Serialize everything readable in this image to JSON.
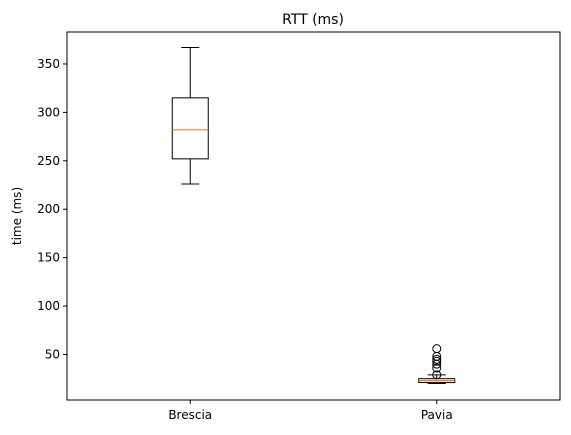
{
  "chart_data": {
    "type": "boxplot",
    "title": "RTT (ms)",
    "xlabel": "",
    "ylabel": "time (ms)",
    "ylim": [
      3,
      383
    ],
    "yticks": [
      50,
      100,
      150,
      200,
      250,
      300,
      350
    ],
    "grid": false,
    "categories": [
      "Brescia",
      "Pavia"
    ],
    "boxes": [
      {
        "name": "Brescia",
        "whisker_low": 226,
        "q1": 252,
        "median": 282,
        "q3": 315,
        "whisker_high": 367,
        "outliers": []
      },
      {
        "name": "Pavia",
        "whisker_low": 20,
        "q1": 21,
        "median": 23,
        "q3": 25,
        "whisker_high": 29,
        "outliers": [
          29,
          36,
          40,
          43,
          45,
          48,
          56
        ]
      }
    ],
    "colors": {
      "box": "#000000",
      "median": "#ff7f0e",
      "flier": "#000000"
    }
  }
}
